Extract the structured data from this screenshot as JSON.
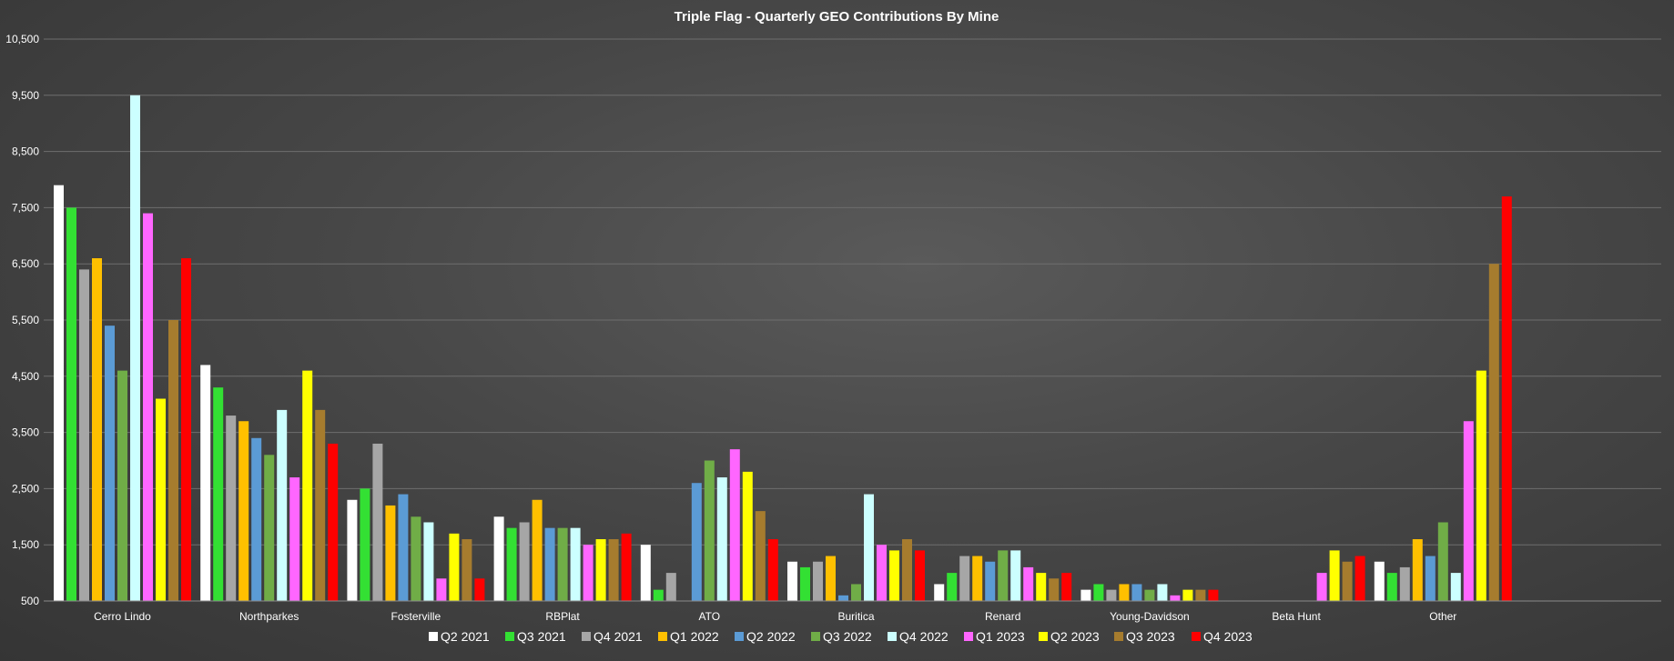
{
  "chart_data": {
    "type": "bar",
    "title": "Triple Flag - Quarterly GEO Contributions By Mine",
    "xlabel": "",
    "ylabel": "",
    "ylim": [
      500,
      10500
    ],
    "yticks": [
      500,
      1500,
      2500,
      3500,
      4500,
      5500,
      6500,
      7500,
      8500,
      9500,
      10500
    ],
    "ytick_labels": [
      "500",
      "1,500",
      "2,500",
      "3,500",
      "4,500",
      "5,500",
      "6,500",
      "7,500",
      "8,500",
      "9,500",
      "10,500"
    ],
    "grid": true,
    "legend_position": "bottom",
    "categories": [
      "Cerro Lindo",
      "Northparkes",
      "Fosterville",
      "RBPlat",
      "ATO",
      "Buritica",
      "Renard",
      "Young-Davidson",
      "Beta Hunt",
      "Other"
    ],
    "series": [
      {
        "name": "Q2 2021",
        "color": "#ffffff",
        "values": [
          7900,
          4700,
          2300,
          2000,
          1500,
          1200,
          800,
          700,
          null,
          1200
        ]
      },
      {
        "name": "Q3 2021",
        "color": "#33e033",
        "values": [
          7500,
          4300,
          2500,
          1800,
          700,
          1100,
          1000,
          800,
          null,
          1000
        ]
      },
      {
        "name": "Q4 2021",
        "color": "#a6a6a6",
        "values": [
          6400,
          3800,
          3300,
          1900,
          1000,
          1200,
          1300,
          700,
          null,
          1100
        ]
      },
      {
        "name": "Q1 2022",
        "color": "#ffc000",
        "values": [
          6600,
          3700,
          2200,
          2300,
          null,
          1300,
          1300,
          800,
          null,
          1600
        ]
      },
      {
        "name": "Q2 2022",
        "color": "#5b9bd5",
        "values": [
          5400,
          3400,
          2400,
          1800,
          2600,
          600,
          1200,
          800,
          null,
          1300
        ]
      },
      {
        "name": "Q3 2022",
        "color": "#70ad47",
        "values": [
          4600,
          3100,
          2000,
          1800,
          3000,
          800,
          1400,
          700,
          null,
          1900
        ]
      },
      {
        "name": "Q4 2022",
        "color": "#ccffff",
        "values": [
          9500,
          3900,
          1900,
          1800,
          2700,
          2400,
          1400,
          800,
          null,
          1000
        ]
      },
      {
        "name": "Q1 2023",
        "color": "#ff66ff",
        "values": [
          7400,
          2700,
          900,
          1500,
          3200,
          1500,
          1100,
          600,
          1000,
          3700
        ]
      },
      {
        "name": "Q2 2023",
        "color": "#ffff00",
        "values": [
          4100,
          4600,
          1700,
          1600,
          2800,
          1400,
          1000,
          700,
          1400,
          4600
        ]
      },
      {
        "name": "Q3 2023",
        "color": "#a67c2e",
        "values": [
          5500,
          3900,
          1600,
          1600,
          2100,
          1600,
          900,
          700,
          1200,
          6500
        ]
      },
      {
        "name": "Q4 2023",
        "color": "#ff0000",
        "values": [
          6600,
          3300,
          900,
          1700,
          1600,
          1400,
          1000,
          700,
          1300,
          7700
        ]
      }
    ]
  }
}
